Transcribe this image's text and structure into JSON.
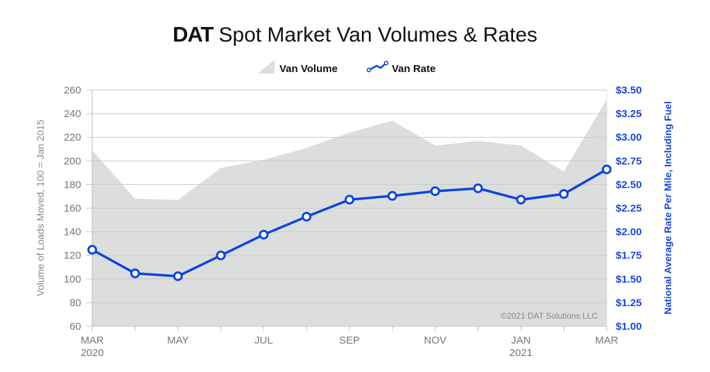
{
  "chart_data": {
    "type": "area+line",
    "title_brand": "DAT",
    "title": "Spot Market Van Volumes & Rates",
    "legend": [
      "Van Volume",
      "Van Rate"
    ],
    "legend_placement": "top-center",
    "categories": [
      "MAR 2020",
      "APR 2020",
      "MAY 2020",
      "JUN 2020",
      "JUL 2020",
      "AUG 2020",
      "SEP 2020",
      "OCT 2020",
      "NOV 2020",
      "DEC 2020",
      "JAN 2021",
      "FEB 2021",
      "MAR 2021"
    ],
    "x_tick_labels": [
      [
        "MAR",
        "2020"
      ],
      [
        "",
        ""
      ],
      [
        "MAY",
        ""
      ],
      [
        "",
        ""
      ],
      [
        "JUL",
        ""
      ],
      [
        "",
        ""
      ],
      [
        "SEP",
        ""
      ],
      [
        "",
        ""
      ],
      [
        "NOV",
        ""
      ],
      [
        "",
        ""
      ],
      [
        "JAN",
        "2021"
      ],
      [
        "",
        ""
      ],
      [
        "MAR",
        ""
      ]
    ],
    "series": [
      {
        "name": "Van Volume",
        "type": "area",
        "axis": "left",
        "color": "#dcdddd",
        "values": [
          209,
          168,
          167,
          194,
          201,
          211,
          224,
          234,
          213,
          217,
          213,
          191,
          252
        ]
      },
      {
        "name": "Van Rate",
        "type": "line",
        "axis": "right",
        "color": "#0a45e0",
        "values": [
          1.81,
          1.56,
          1.53,
          1.75,
          1.97,
          2.16,
          2.34,
          2.38,
          2.43,
          2.46,
          2.34,
          2.4,
          2.66
        ]
      }
    ],
    "ylabel_left": "Volume of Loads Moved, 100 = Jan 2015",
    "ylim_left": [
      60,
      260
    ],
    "yticks_left": [
      "60",
      "80",
      "100",
      "120",
      "140",
      "160",
      "180",
      "200",
      "220",
      "240",
      "260"
    ],
    "ylabel_right": "National Average Rate Per Mile, Including Fuel",
    "ylim_right": [
      1.0,
      3.5
    ],
    "yticks_right": [
      "$1.00",
      "$1.25",
      "$1.50",
      "$1.75",
      "$2.00",
      "$2.25",
      "$2.50",
      "$2.75",
      "$3.00",
      "$3.25",
      "$3.50"
    ],
    "grid": true,
    "annotation": "©2021 DAT Solutions LLC"
  }
}
